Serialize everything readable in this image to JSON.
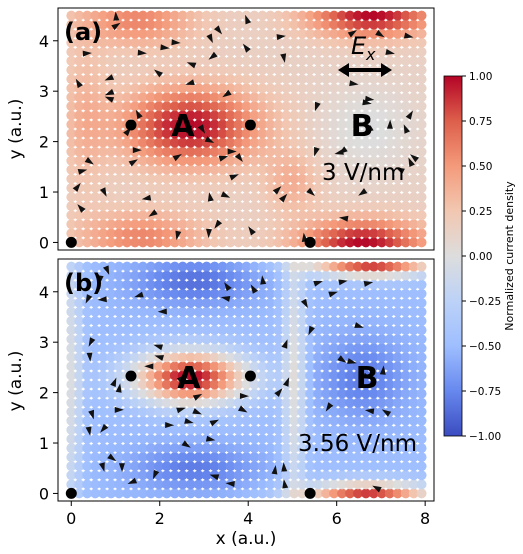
{
  "chart_data": [
    {
      "type": "heatmap",
      "panel_label": "(a)",
      "xlim": [
        -0.3,
        8.2
      ],
      "ylim": [
        -0.15,
        4.65
      ],
      "grid_x": {
        "min": 0,
        "max": 7.92,
        "count": 45
      },
      "grid_y": {
        "min": 0,
        "max": 4.5,
        "count": 26
      },
      "ylabel": "y (a.u.)",
      "yticks": [
        0,
        1,
        2,
        3,
        4
      ],
      "xticks": [
        0,
        2,
        4,
        6,
        8
      ],
      "annotations": {
        "region_a": "A",
        "region_b": "B",
        "field": "3 V/nm",
        "field_symbol": "E",
        "field_symbol_sub": "x"
      },
      "atoms": [
        [
          0,
          0
        ],
        [
          1.35,
          2.33
        ],
        [
          4.05,
          2.33
        ],
        [
          5.4,
          0
        ]
      ],
      "field_arrow": {
        "x_start": 6.05,
        "x_end": 7.2,
        "y": 3.6
      }
    },
    {
      "type": "heatmap",
      "panel_label": "(b)",
      "xlim": [
        -0.3,
        8.2
      ],
      "ylim": [
        -0.15,
        4.65
      ],
      "grid_x": {
        "min": 0,
        "max": 7.92,
        "count": 45
      },
      "grid_y": {
        "min": 0,
        "max": 4.5,
        "count": 26
      },
      "ylabel": "y (a.u.)",
      "xlabel": "x (a.u.)",
      "yticks": [
        0,
        1,
        2,
        3,
        4
      ],
      "xticks": [
        0,
        2,
        4,
        6,
        8
      ],
      "annotations": {
        "region_a": "A",
        "region_b": "B",
        "field": "3.56 V/nm"
      },
      "atoms": [
        [
          0,
          0
        ],
        [
          1.35,
          2.33
        ],
        [
          4.05,
          2.33
        ],
        [
          5.4,
          0
        ]
      ]
    }
  ],
  "colorbar": {
    "label": "Normalized current density",
    "range": [
      -1.0,
      1.0
    ],
    "ticks": [
      "1.00",
      "0.75",
      "0.50",
      "0.25",
      "0.00",
      "−0.25",
      "−0.50",
      "−0.75",
      "−1.00"
    ],
    "colormap": "coolwarm",
    "colors": {
      "low": "#3b4cc0",
      "mid": "#dddddd",
      "high": "#b40426"
    }
  }
}
